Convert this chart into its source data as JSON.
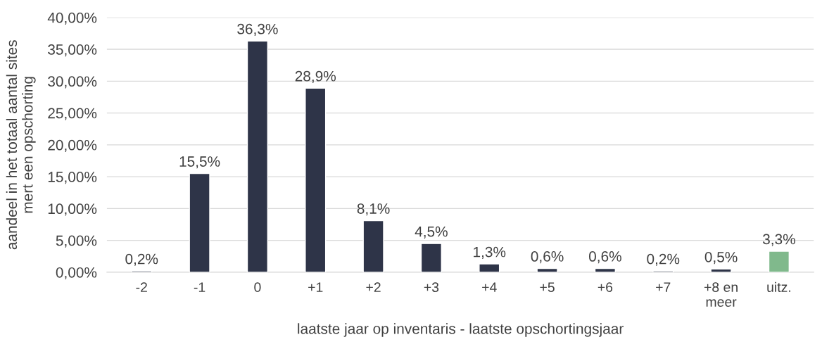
{
  "chart_data": {
    "type": "bar",
    "categories": [
      "-2",
      "-1",
      "0",
      "+1",
      "+2",
      "+3",
      "+4",
      "+5",
      "+6",
      "+7",
      "+8 en meer",
      "uitz."
    ],
    "values": [
      0.2,
      15.5,
      36.3,
      28.9,
      8.1,
      4.5,
      1.3,
      0.6,
      0.6,
      0.2,
      0.5,
      3.3
    ],
    "colors": [
      "#2e3448",
      "#2e3448",
      "#2e3448",
      "#2e3448",
      "#2e3448",
      "#2e3448",
      "#2e3448",
      "#2e3448",
      "#2e3448",
      "#2e3448",
      "#2e3448",
      "#80b98c"
    ],
    "value_labels": [
      "0,2%",
      "15,5%",
      "36,3%",
      "28,9%",
      "8,1%",
      "4,5%",
      "1,3%",
      "0,6%",
      "0,6%",
      "0,2%",
      "0,5%",
      "3,3%"
    ],
    "xlabel": "laatste jaar op inventaris - laatste opschortingsjaar",
    "ylabel": "aandeel in het totaal aantal sites\nmert een opschorting",
    "ylim": [
      0,
      40
    ],
    "yticks": [
      {
        "value": 0,
        "label": "0,00%"
      },
      {
        "value": 5,
        "label": "5,00%"
      },
      {
        "value": 10,
        "label": "10,00%"
      },
      {
        "value": 15,
        "label": "15,00%"
      },
      {
        "value": 20,
        "label": "20,00%"
      },
      {
        "value": 25,
        "label": "25,00%"
      },
      {
        "value": 30,
        "label": "30,00%"
      },
      {
        "value": 35,
        "label": "35,00%"
      },
      {
        "value": 40,
        "label": "40,00%"
      }
    ],
    "grid": "y"
  }
}
